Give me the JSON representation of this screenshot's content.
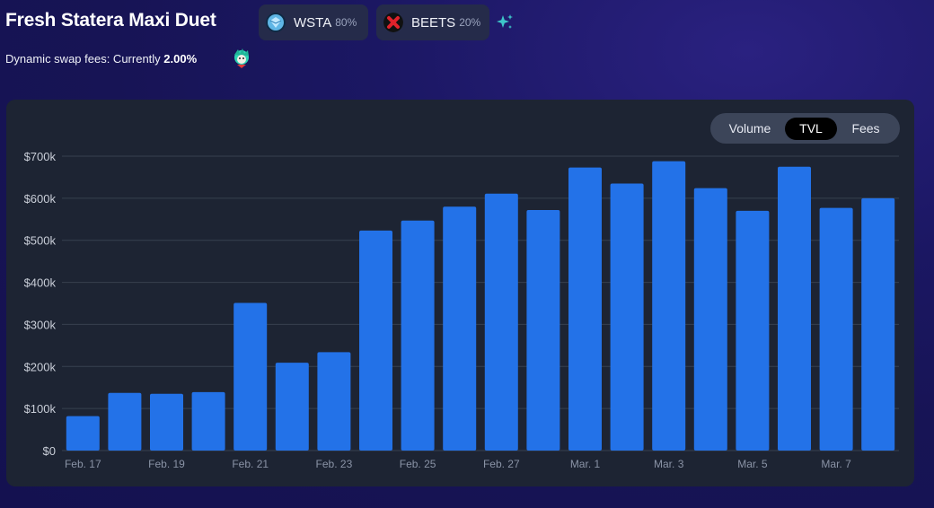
{
  "header": {
    "title": "Fresh Statera Maxi Duet",
    "tokens": [
      {
        "symbol": "WSTA",
        "weight": "80%",
        "icon": "wsta-token-icon"
      },
      {
        "symbol": "BEETS",
        "weight": "20%",
        "icon": "beets-token-icon"
      }
    ],
    "sparkle_icon": "sparkle-icon",
    "fee_prefix": "Dynamic swap fees: Currently",
    "fee_value": "2.00%",
    "fee_icon": "fee-avatar-icon"
  },
  "toggle": {
    "options": [
      "Volume",
      "TVL",
      "Fees"
    ],
    "selected": "TVL"
  },
  "colors": {
    "bar": "#2372e8",
    "card": "#1d2433",
    "grid": "#37404f",
    "axis_text": "#c9ced8",
    "x_tick_text": "#8a93a6"
  },
  "chart_data": {
    "type": "bar",
    "categories": [
      "Feb. 17",
      "Feb. 18",
      "Feb. 19",
      "Feb. 20",
      "Feb. 21",
      "Feb. 22",
      "Feb. 23",
      "Feb. 24",
      "Feb. 25",
      "Feb. 26",
      "Feb. 27",
      "Feb. 28",
      "Mar. 1",
      "Mar. 2",
      "Mar. 3",
      "Mar. 4",
      "Mar. 5",
      "Mar. 6",
      "Mar. 7",
      "Mar. 8"
    ],
    "values": [
      82000,
      137000,
      135000,
      139000,
      351000,
      209000,
      234000,
      523000,
      547000,
      580000,
      611000,
      572000,
      673000,
      635000,
      688000,
      624000,
      570000,
      675000,
      577000,
      600000
    ],
    "x_tick_labels": [
      "Feb. 17",
      "Feb. 19",
      "Feb. 21",
      "Feb. 23",
      "Feb. 25",
      "Feb. 27",
      "Mar. 1",
      "Mar. 3",
      "Mar. 5",
      "Mar. 7"
    ],
    "y_ticks": [
      0,
      100000,
      200000,
      300000,
      400000,
      500000,
      600000,
      700000
    ],
    "y_tick_labels": [
      "$0",
      "$100k",
      "$200k",
      "$300k",
      "$400k",
      "$500k",
      "$600k",
      "$700k"
    ],
    "ylim": [
      0,
      700000
    ],
    "grid": true,
    "title": "",
    "xlabel": "",
    "ylabel": ""
  }
}
